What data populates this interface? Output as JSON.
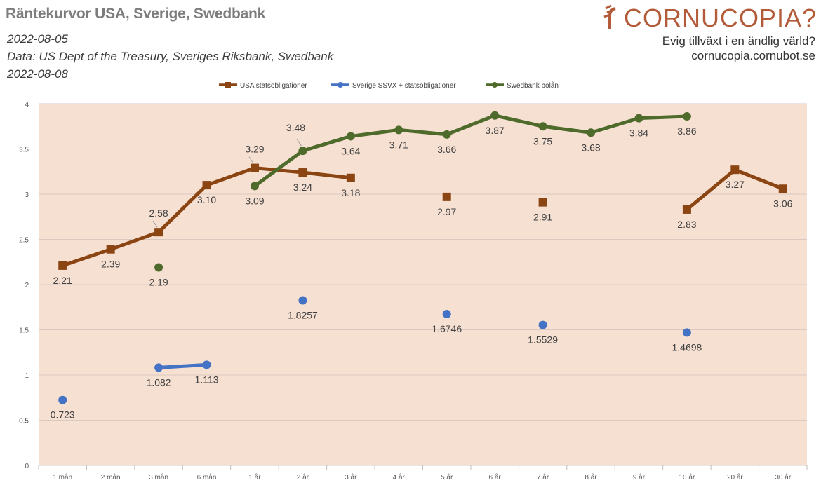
{
  "header": {
    "title": "Räntekurvor USA, Sverige, Swedbank",
    "date": "2022-08-05",
    "source": "Data: US Dept of the Treasury, Sveriges Riksbank, Swedbank",
    "date2": "2022-08-08"
  },
  "brand": {
    "logo_text": "CORNUCOPIA?",
    "tagline": "Evig tillväxt i en ändlig värld?",
    "site": "cornucopia.cornubot.se"
  },
  "colors": {
    "usa": "#8b4513",
    "sverige": "#4472c4",
    "swedbank": "#4e6b2c",
    "plot_bg": "#f6e0d2",
    "grid": "#d9c9c0",
    "logo": "#b35a38"
  },
  "chart_data": {
    "type": "line",
    "title": "Räntekurvor USA, Sverige, Swedbank",
    "xlabel": "",
    "ylabel": "",
    "ylim": [
      0,
      4
    ],
    "yticks": [
      "0",
      "0.5",
      "1",
      "1.5",
      "2",
      "2.5",
      "3",
      "3.5",
      "4"
    ],
    "ytick_values": [
      0,
      0.5,
      1,
      1.5,
      2,
      2.5,
      3,
      3.5,
      4
    ],
    "grid": true,
    "legend": "top-center",
    "categories": [
      "1 mån",
      "2 mån",
      "3 mån",
      "6 mån",
      "1 år",
      "2 år",
      "3 år",
      "4 år",
      "5 år",
      "6 år",
      "7 år",
      "8 år",
      "9 år",
      "10 år",
      "20 år",
      "30 år"
    ],
    "series": [
      {
        "key": "usa",
        "name": "USA statsobligationer",
        "marker": "square",
        "values": [
          2.21,
          2.39,
          2.58,
          3.1,
          3.29,
          3.24,
          3.18,
          null,
          2.97,
          null,
          2.91,
          null,
          null,
          2.83,
          3.27,
          3.06
        ],
        "labels": [
          "2.21",
          "2.39",
          "2.58",
          "3.10",
          "3.29",
          "3.24",
          "3.18",
          null,
          "2.97",
          null,
          "2.91",
          null,
          null,
          "2.83",
          "3.27",
          "3.06"
        ]
      },
      {
        "key": "sverige",
        "name": "Sverige SSVX + statsobligationer",
        "marker": "circle",
        "values": [
          0.723,
          null,
          1.082,
          1.113,
          null,
          1.8257,
          null,
          null,
          1.6746,
          null,
          1.5529,
          null,
          null,
          1.4698,
          null,
          null
        ],
        "labels": [
          "0.723",
          null,
          "1.082",
          "1.113",
          null,
          "1.8257",
          null,
          null,
          "1.6746",
          null,
          "1.5529",
          null,
          null,
          "1.4698",
          null,
          null
        ]
      },
      {
        "key": "swedbank",
        "name": "Swedbank bolån",
        "marker": "circle",
        "values": [
          null,
          null,
          2.19,
          null,
          3.09,
          3.48,
          3.64,
          3.71,
          3.66,
          3.87,
          3.75,
          3.68,
          3.84,
          3.86,
          null,
          null
        ],
        "labels": [
          null,
          null,
          "2.19",
          null,
          "3.09",
          "3.48",
          "3.64",
          "3.71",
          "3.66",
          "3.87",
          "3.75",
          "3.68",
          "3.84",
          "3.86",
          null,
          null
        ]
      }
    ]
  }
}
